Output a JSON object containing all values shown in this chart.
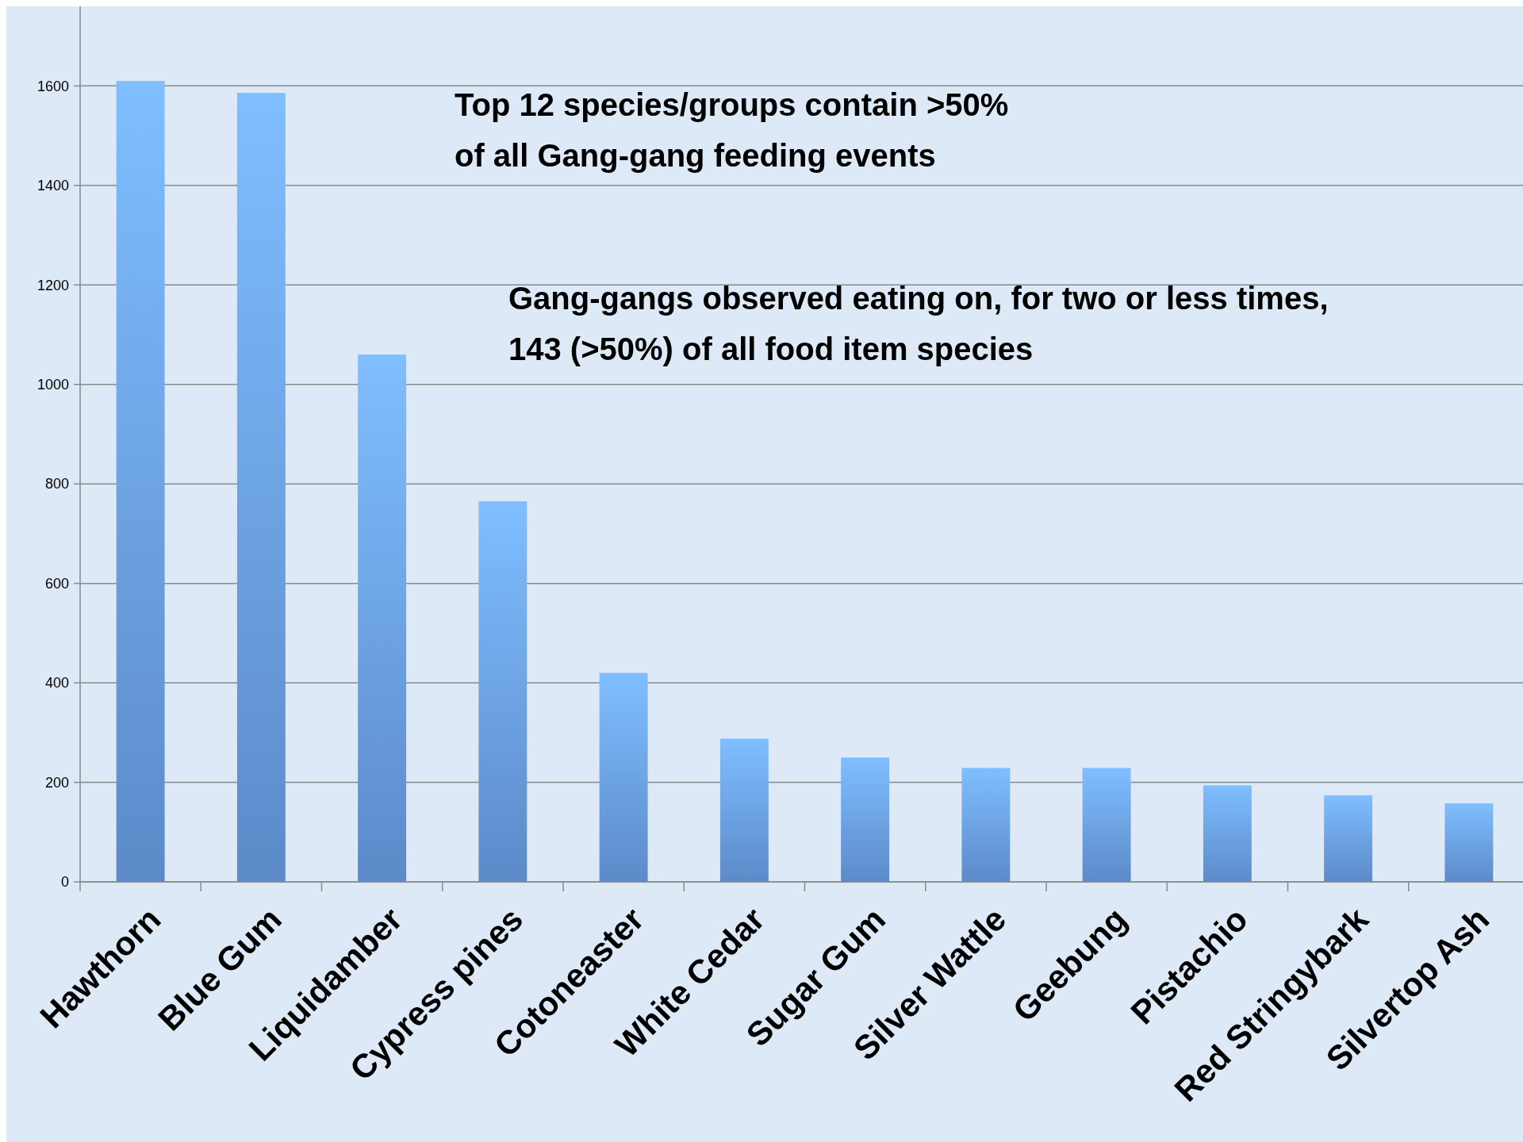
{
  "chart_data": {
    "type": "bar",
    "categories": [
      "Hawthorn",
      "Blue Gum",
      "Liquidamber",
      "Cypress pines",
      "Cotoneaster",
      "White Cedar",
      "Sugar Gum",
      "Silver Wattle",
      "Geebung",
      "Pistachio",
      "Red Stringybark",
      "Silvertop Ash"
    ],
    "values": [
      1610,
      1586,
      1060,
      765,
      420,
      288,
      250,
      229,
      229,
      194,
      174,
      158
    ],
    "color": "#6a9fe8",
    "ylim": [
      0,
      1760
    ],
    "yticks": [
      0,
      200,
      400,
      600,
      800,
      1000,
      1200,
      1400,
      1600
    ],
    "grid": "y",
    "annotations": [
      "Top 12 species/groups contain >50%\nof all Gang-gang feeding events",
      "Gang-gangs observed eating on, for two or less times,\n143 (>50%) of all food item species"
    ]
  }
}
